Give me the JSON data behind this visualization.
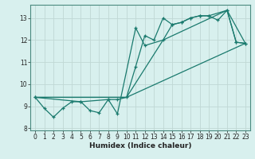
{
  "title": "",
  "xlabel": "Humidex (Indice chaleur)",
  "bg_color": "#d8f0ee",
  "line_color": "#1a7a6e",
  "grid_color": "#c0d8d4",
  "xlim": [
    -0.5,
    23.5
  ],
  "ylim": [
    7.9,
    13.6
  ],
  "yticks": [
    8,
    9,
    10,
    11,
    12,
    13
  ],
  "xticks": [
    0,
    1,
    2,
    3,
    4,
    5,
    6,
    7,
    8,
    9,
    10,
    11,
    12,
    13,
    14,
    15,
    16,
    17,
    18,
    19,
    20,
    21,
    22,
    23
  ],
  "series1_x": [
    0,
    1,
    2,
    3,
    4,
    5,
    6,
    7,
    8,
    9,
    10,
    11,
    12,
    13,
    14,
    15,
    16,
    17,
    18,
    19,
    20,
    21,
    22,
    23
  ],
  "series1_y": [
    9.4,
    8.9,
    8.5,
    8.9,
    9.2,
    9.2,
    8.8,
    8.7,
    9.3,
    9.3,
    9.4,
    10.8,
    12.2,
    12.0,
    13.0,
    12.7,
    12.8,
    13.0,
    13.1,
    13.1,
    12.9,
    13.35,
    11.9,
    11.85
  ],
  "series2_x": [
    0,
    5,
    8,
    9,
    11,
    12,
    14,
    15,
    16,
    17,
    18,
    19,
    21,
    22,
    23
  ],
  "series2_y": [
    9.4,
    9.2,
    9.3,
    8.65,
    12.55,
    11.75,
    12.0,
    12.7,
    12.8,
    13.0,
    13.1,
    13.1,
    13.35,
    11.9,
    11.85
  ],
  "series3_x": [
    0,
    10,
    14,
    21,
    23
  ],
  "series3_y": [
    9.4,
    9.4,
    12.0,
    13.35,
    11.85
  ],
  "series4_x": [
    0,
    10,
    23
  ],
  "series4_y": [
    9.4,
    9.4,
    11.85
  ]
}
